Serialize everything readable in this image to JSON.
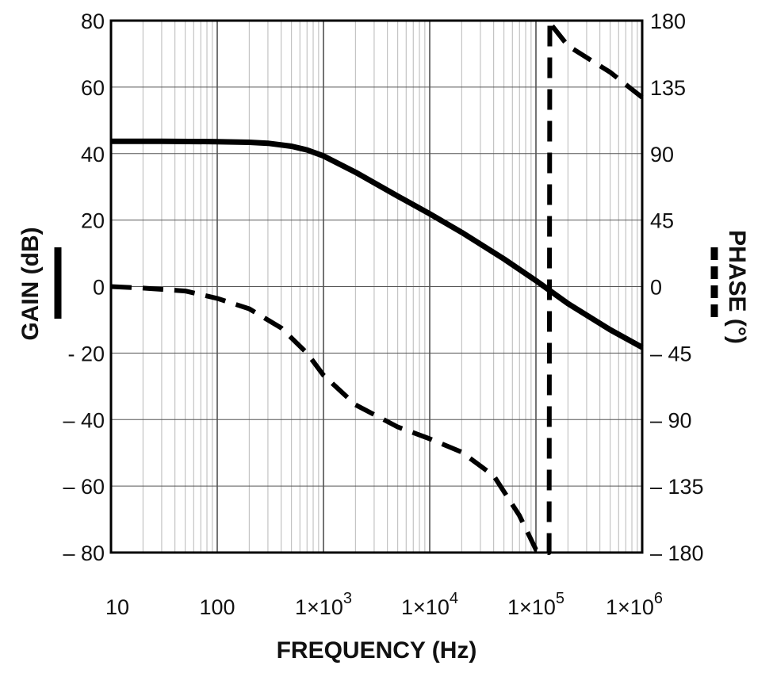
{
  "chart_data": {
    "type": "line",
    "title": "",
    "xlabel": "FREQUENCY (Hz)",
    "ylabel_left": "GAIN (dB)",
    "ylabel_right": "PHASE (°)",
    "x_scale": "log",
    "xlim": [
      10,
      1000000
    ],
    "ylim_left": [
      -80,
      80
    ],
    "ylim_right": [
      -180,
      180
    ],
    "grid": true,
    "x_ticks": [
      {
        "value": 10,
        "base": "10",
        "exp": ""
      },
      {
        "value": 100,
        "base": "100",
        "exp": ""
      },
      {
        "value": 1000,
        "base": "1×10",
        "exp": "3"
      },
      {
        "value": 10000,
        "base": "1×10",
        "exp": "4"
      },
      {
        "value": 100000,
        "base": "1×10",
        "exp": "5"
      },
      {
        "value": 1000000,
        "base": "1×10",
        "exp": "6"
      }
    ],
    "left_ticks": [
      {
        "value": 80,
        "label": "80"
      },
      {
        "value": 60,
        "label": "60"
      },
      {
        "value": 40,
        "label": "40"
      },
      {
        "value": 20,
        "label": "20"
      },
      {
        "value": 0,
        "label": "0"
      },
      {
        "value": -20,
        "label": "- 20"
      },
      {
        "value": -40,
        "label": "– 40"
      },
      {
        "value": -60,
        "label": "– 60"
      },
      {
        "value": -80,
        "label": "– 80"
      }
    ],
    "right_ticks": [
      {
        "value": 180,
        "label": "180"
      },
      {
        "value": 135,
        "label": "135"
      },
      {
        "value": 90,
        "label": "90"
      },
      {
        "value": 45,
        "label": "45"
      },
      {
        "value": 0,
        "label": "0"
      },
      {
        "value": -45,
        "label": "– 45"
      },
      {
        "value": -90,
        "label": "– 90"
      },
      {
        "value": -135,
        "label": "– 135"
      },
      {
        "value": -180,
        "label": "– 180"
      }
    ],
    "series": [
      {
        "name": "GAIN",
        "axis": "left",
        "style": "solid",
        "color": "#000000",
        "x": [
          10,
          30,
          100,
          200,
          300,
          500,
          700,
          1000,
          2000,
          5000,
          10000,
          20000,
          50000,
          100000,
          200000,
          500000,
          1000000
        ],
        "values": [
          43.7,
          43.7,
          43.6,
          43.4,
          43.1,
          42.2,
          41.1,
          39.3,
          34.4,
          27.2,
          21.9,
          16.3,
          8.3,
          1.8,
          -5.1,
          -13.0,
          -18.3
        ]
      },
      {
        "name": "PHASE",
        "axis": "right",
        "style": "dashed",
        "color": "#000000",
        "x": [
          10,
          20,
          50,
          100,
          200,
          400,
          700,
          1000,
          2000,
          5000,
          10000,
          20000,
          40000,
          70000,
          100000,
          130000,
          133000,
          135000,
          140000,
          200000,
          500000,
          1000000
        ],
        "values": [
          0,
          -1,
          -3,
          -8,
          -15,
          -28,
          -45,
          -60,
          -80,
          -95,
          -103,
          -112,
          -128,
          -155,
          -178,
          -180,
          -180,
          180,
          177,
          163,
          145,
          128
        ]
      }
    ]
  }
}
